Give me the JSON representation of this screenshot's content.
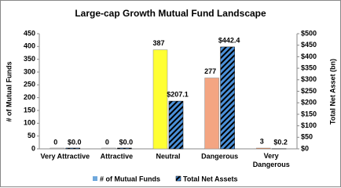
{
  "chart_data": {
    "type": "bar",
    "title": "Large-cap Growth Mutual Fund Landscape",
    "categories": [
      "Very Attractive",
      "Attractive",
      "Neutral",
      "Dangerous",
      "Very Dangerous"
    ],
    "series": [
      {
        "name": "# of Mutual Funds",
        "color": "#6fa8dc",
        "colors": [
          "#bfbfbf",
          "#bfbfbf",
          "#ffff33",
          "#f4a582",
          "#e8763c"
        ],
        "values": [
          0,
          0,
          387,
          277,
          3
        ]
      },
      {
        "name": "Total Net Assets",
        "color": "#4a90d9",
        "axis": "y2",
        "values": [
          0.0,
          0.0,
          207.1,
          442.4,
          0.2
        ],
        "value_labels": [
          "$0.0",
          "$0.0",
          "$207.1",
          "$442.4",
          "$0.2"
        ]
      }
    ],
    "ylabel": "# of Mutual Funds",
    "y2label": "Total Net Asset (bn)",
    "ylim": [
      0,
      450
    ],
    "yticks": [
      0,
      50,
      100,
      150,
      200,
      250,
      300,
      350,
      400,
      450
    ],
    "y2lim": [
      0,
      500
    ],
    "y2ticks": [
      {
        "value": 0,
        "label": "$0"
      },
      {
        "value": 50,
        "label": "$50"
      },
      {
        "value": 100,
        "label": "$100"
      },
      {
        "value": 150,
        "label": "$150"
      },
      {
        "value": 200,
        "label": "$200"
      },
      {
        "value": 250,
        "label": "$250"
      },
      {
        "value": 300,
        "label": "$300"
      },
      {
        "value": 350,
        "label": "$350"
      },
      {
        "value": 400,
        "label": "$400"
      },
      {
        "value": 450,
        "label": "$450"
      },
      {
        "value": 500,
        "label": "$500"
      }
    ],
    "legend": "bottom"
  }
}
